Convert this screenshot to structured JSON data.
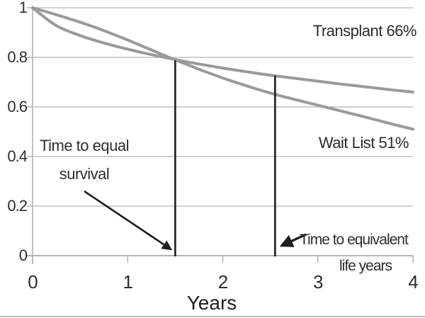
{
  "chart_data": {
    "type": "line",
    "title": "",
    "xlabel": "Years",
    "ylabel": "",
    "xlim": [
      0,
      4
    ],
    "ylim": [
      0,
      1
    ],
    "xticks": [
      0,
      1,
      2,
      3,
      4
    ],
    "yticks": [
      0,
      0.2,
      0.4,
      0.6,
      0.8,
      1
    ],
    "grid": "horizontal",
    "legend_position": "labels-on-plot",
    "series": [
      {
        "name": "Transplant",
        "label": "Transplant 66%",
        "survival_at_4_years": 0.66,
        "color": "#9a9a9a",
        "x": [
          0,
          0.25,
          0.5,
          0.75,
          1,
          1.25,
          1.5,
          1.75,
          2,
          2.25,
          2.5,
          2.75,
          3,
          3.25,
          3.5,
          3.75,
          4
        ],
        "values": [
          1.0,
          0.928,
          0.888,
          0.858,
          0.833,
          0.811,
          0.791,
          0.773,
          0.757,
          0.742,
          0.728,
          0.716,
          0.704,
          0.692,
          0.681,
          0.67,
          0.66
        ]
      },
      {
        "name": "Wait List",
        "label": "Wait List 51%",
        "survival_at_4_years": 0.51,
        "color": "#9a9a9a",
        "x": [
          0,
          0.25,
          0.5,
          0.75,
          1,
          1.25,
          1.5,
          1.75,
          2,
          2.25,
          2.5,
          2.75,
          3,
          3.25,
          3.5,
          3.75,
          4
        ],
        "values": [
          1.0,
          0.972,
          0.942,
          0.908,
          0.87,
          0.83,
          0.79,
          0.752,
          0.717,
          0.685,
          0.656,
          0.631,
          0.607,
          0.583,
          0.559,
          0.534,
          0.51
        ]
      }
    ],
    "markers": [
      {
        "name": "time-to-equal-survival",
        "x": 1.5,
        "y_top": 0.788,
        "annotation": {
          "line1": "Time to equal",
          "line2": "survival"
        }
      },
      {
        "name": "time-to-equivalent-life-years",
        "x": 2.55,
        "y_top": 0.726,
        "annotation": {
          "line1": "Time to equivalent",
          "line2": "life years"
        }
      }
    ]
  },
  "colors": {
    "curve": "#9a9a9a",
    "gridline": "#b3b3b3",
    "axis": "#b3b3b3",
    "marker_line": "#1e1e1e",
    "arrow": "#1e1e1e",
    "text": "#2e2e2e"
  }
}
